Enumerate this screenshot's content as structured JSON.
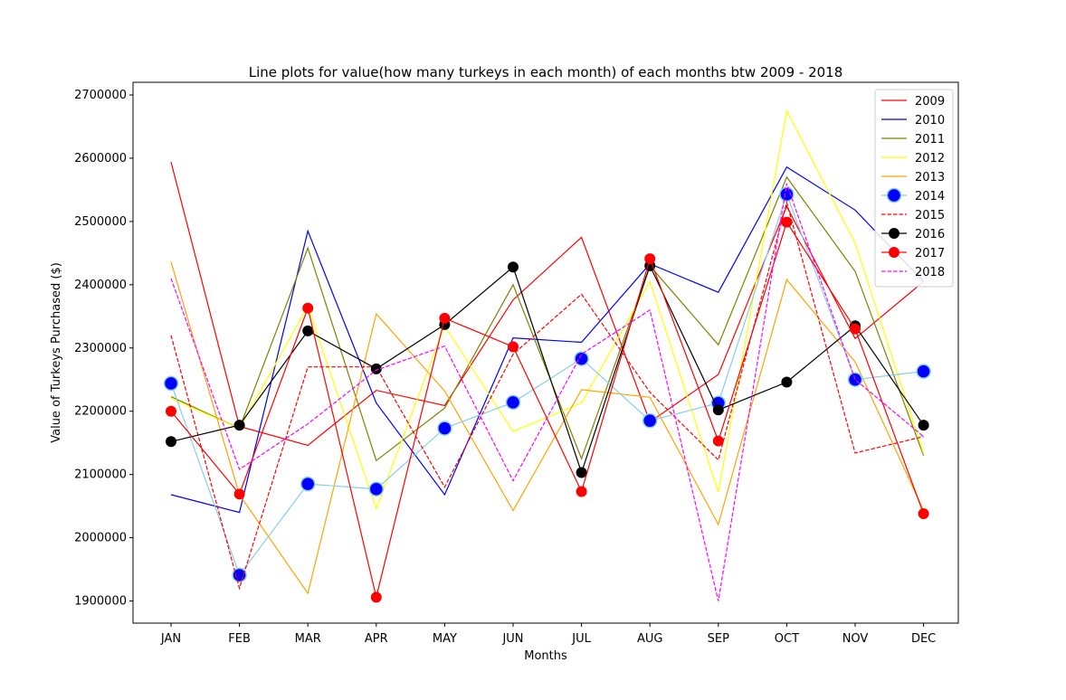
{
  "chart_data": {
    "type": "line",
    "title": "Line plots for value(how many turkeys in each month) of each months btw 2009 - 2018",
    "xlabel": "Months",
    "ylabel": "Value of Turkeys Purchased ($)",
    "categories": [
      "JAN",
      "FEB",
      "MAR",
      "APR",
      "MAY",
      "JUN",
      "JUL",
      "AUG",
      "SEP",
      "OCT",
      "NOV",
      "DEC"
    ],
    "ylim": [
      1865000,
      2720000
    ],
    "yticks": [
      1900000,
      2000000,
      2100000,
      2200000,
      2300000,
      2400000,
      2500000,
      2600000,
      2700000
    ],
    "grid": false,
    "legend_position": "top-right",
    "series": [
      {
        "name": "2009",
        "color": "#ff0000",
        "dash": "solid",
        "marker": "none",
        "values": [
          2594000,
          2176000,
          2146000,
          2233000,
          2209000,
          2376000,
          2475000,
          2183000,
          2258000,
          2524000,
          2315000,
          2405000
        ]
      },
      {
        "name": "2010",
        "color": "#0000ff",
        "dash": "solid",
        "marker": "none",
        "values": [
          2068000,
          2040000,
          2485000,
          2213000,
          2068000,
          2316000,
          2309000,
          2433000,
          2388000,
          2586000,
          2518000,
          2405000
        ]
      },
      {
        "name": "2011",
        "color": "#808000",
        "dash": "solid",
        "marker": "none",
        "values": [
          2223000,
          2173000,
          2458000,
          2122000,
          2205000,
          2400000,
          2125000,
          2430000,
          2305000,
          2570000,
          2421000,
          2130000
        ]
      },
      {
        "name": "2012",
        "color": "#ffff00",
        "dash": "solid",
        "marker": "none",
        "values": [
          2220000,
          2173000,
          2366000,
          2046000,
          2335000,
          2168000,
          2213000,
          2405000,
          2072000,
          2675000,
          2466000,
          2133000
        ]
      },
      {
        "name": "2013",
        "color": "#ffa500",
        "dash": "solid",
        "marker": "none",
        "values": [
          2436000,
          2068000,
          1912000,
          2354000,
          2232000,
          2043000,
          2234000,
          2222000,
          2021000,
          2408000,
          2278000,
          2043000
        ]
      },
      {
        "name": "2014",
        "color": "#87ceeb",
        "dash": "solid",
        "marker": "large-blue",
        "values": [
          2244000,
          1941000,
          2085000,
          2077000,
          2173000,
          2214000,
          2283000,
          2185000,
          2213000,
          2543000,
          2250000,
          2263000
        ]
      },
      {
        "name": "2015",
        "color": "#ff0000",
        "dash": "dashed",
        "marker": "none",
        "values": [
          2320000,
          1920000,
          2270000,
          2270000,
          2080000,
          2290000,
          2385000,
          2230000,
          2123000,
          2530000,
          2134000,
          2160000
        ]
      },
      {
        "name": "2016",
        "color": "#000000",
        "dash": "solid",
        "marker": "black-dot",
        "values": [
          2152000,
          2178000,
          2327000,
          2267000,
          2337000,
          2428000,
          2103000,
          2430000,
          2202000,
          2246000,
          2335000,
          2178000
        ]
      },
      {
        "name": "2017",
        "color": "#ff0000",
        "dash": "solid",
        "marker": "red-dot",
        "values": [
          2200000,
          2069000,
          2363000,
          1906000,
          2347000,
          2302000,
          2073000,
          2441000,
          2153000,
          2499000,
          2330000,
          2038000
        ]
      },
      {
        "name": "2018",
        "color": "#ff00ff",
        "dash": "dashed",
        "marker": "none",
        "values": [
          2410000,
          2108000,
          2180000,
          2265000,
          2303000,
          2090000,
          2290000,
          2360000,
          1900000,
          2560000,
          2250000,
          2160000
        ]
      }
    ]
  }
}
